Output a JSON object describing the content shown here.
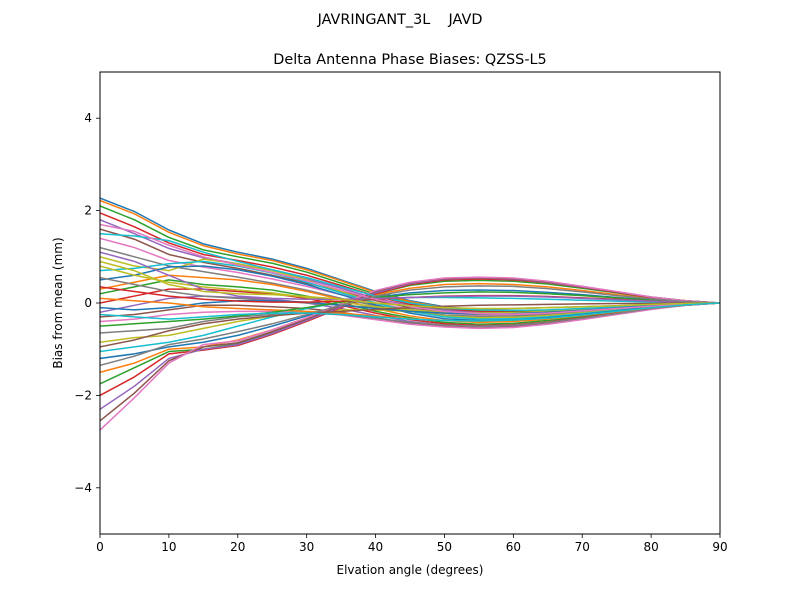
{
  "chart_data": {
    "type": "line",
    "suptitle": "JAVRINGANT_3L    JAVD",
    "title": "Delta Antenna Phase Biases: QZSS-L5",
    "xlabel": "Elvation angle (degrees)",
    "ylabel": "Bias from mean (mm)",
    "xlim": [
      0,
      90
    ],
    "ylim": [
      -5,
      5
    ],
    "x": [
      0,
      5,
      10,
      15,
      20,
      25,
      30,
      35,
      40,
      45,
      50,
      55,
      60,
      65,
      70,
      75,
      80,
      85,
      90
    ],
    "xticks": [
      0,
      10,
      20,
      30,
      40,
      50,
      60,
      70,
      80,
      90
    ],
    "yticks": [
      -4,
      -2,
      0,
      2,
      4
    ],
    "ytick_labels": [
      "−4",
      "−2",
      "0",
      "2",
      "4"
    ],
    "grid": false,
    "legend": "none",
    "palette": [
      "#1f77b4",
      "#ff7f0e",
      "#2ca02c",
      "#d62728",
      "#9467bd",
      "#8c564b",
      "#e377c2",
      "#7f7f7f",
      "#bcbd22",
      "#17becf"
    ],
    "series": [
      {
        "values": [
          2.27,
          1.98,
          1.58,
          1.28,
          1.1,
          0.95,
          0.75,
          0.5,
          0.25,
          0.05,
          -0.08,
          -0.15,
          -0.17,
          -0.16,
          -0.13,
          -0.09,
          -0.05,
          -0.02,
          0.0
        ]
      },
      {
        "values": [
          2.22,
          1.93,
          1.53,
          1.24,
          1.06,
          0.92,
          0.72,
          0.48,
          0.23,
          0.03,
          -0.1,
          -0.16,
          -0.18,
          -0.17,
          -0.14,
          -0.1,
          -0.06,
          -0.02,
          0.0
        ]
      },
      {
        "values": [
          2.1,
          1.8,
          1.42,
          1.15,
          1.0,
          0.86,
          0.67,
          0.43,
          0.19,
          0.0,
          -0.12,
          -0.18,
          -0.19,
          -0.18,
          -0.15,
          -0.1,
          -0.06,
          -0.02,
          0.0
        ]
      },
      {
        "values": [
          1.95,
          1.65,
          1.3,
          1.05,
          0.92,
          0.78,
          0.6,
          0.38,
          0.15,
          -0.03,
          -0.14,
          -0.19,
          -0.2,
          -0.19,
          -0.15,
          -0.11,
          -0.06,
          -0.02,
          0.0
        ]
      },
      {
        "values": [
          1.8,
          1.5,
          1.18,
          0.98,
          0.85,
          0.7,
          0.52,
          0.32,
          0.1,
          -0.06,
          -0.16,
          -0.21,
          -0.22,
          -0.2,
          -0.16,
          -0.11,
          -0.06,
          -0.02,
          0.0
        ]
      },
      {
        "values": [
          1.6,
          1.38,
          1.05,
          0.88,
          0.75,
          0.6,
          0.43,
          0.25,
          0.05,
          -0.1,
          -0.2,
          -0.24,
          -0.24,
          -0.22,
          -0.17,
          -0.12,
          -0.07,
          -0.03,
          0.0
        ]
      },
      {
        "values": [
          1.4,
          1.2,
          0.92,
          0.78,
          0.66,
          0.52,
          0.36,
          0.18,
          0.0,
          -0.14,
          -0.22,
          -0.26,
          -0.26,
          -0.23,
          -0.18,
          -0.13,
          -0.07,
          -0.03,
          0.0
        ]
      },
      {
        "values": [
          1.2,
          1.0,
          0.8,
          0.68,
          0.56,
          0.43,
          0.28,
          0.1,
          -0.06,
          -0.18,
          -0.26,
          -0.29,
          -0.28,
          -0.25,
          -0.2,
          -0.14,
          -0.08,
          -0.03,
          0.0
        ]
      },
      {
        "values": [
          1.0,
          0.8,
          0.7,
          0.95,
          0.85,
          0.7,
          0.5,
          0.25,
          0.0,
          -0.18,
          -0.28,
          -0.32,
          -0.31,
          -0.27,
          -0.21,
          -0.15,
          -0.08,
          -0.03,
          0.0
        ]
      },
      {
        "values": [
          0.7,
          0.75,
          0.85,
          0.9,
          0.8,
          0.65,
          0.45,
          0.22,
          0.0,
          -0.18,
          -0.3,
          -0.35,
          -0.34,
          -0.3,
          -0.23,
          -0.16,
          -0.09,
          -0.03,
          0.0
        ]
      },
      {
        "values": [
          0.5,
          0.6,
          0.78,
          0.8,
          0.72,
          0.58,
          0.4,
          0.18,
          -0.04,
          -0.22,
          -0.34,
          -0.38,
          -0.37,
          -0.32,
          -0.25,
          -0.17,
          -0.09,
          -0.04,
          0.0
        ]
      },
      {
        "values": [
          0.3,
          0.45,
          0.6,
          0.55,
          0.5,
          0.4,
          0.25,
          0.08,
          -0.12,
          -0.28,
          -0.38,
          -0.42,
          -0.4,
          -0.35,
          -0.27,
          -0.19,
          -0.1,
          -0.04,
          0.0
        ]
      },
      {
        "values": [
          0.2,
          0.35,
          0.5,
          0.4,
          0.35,
          0.28,
          0.15,
          0.0,
          -0.18,
          -0.32,
          -0.42,
          -0.46,
          -0.44,
          -0.38,
          -0.3,
          -0.2,
          -0.11,
          -0.04,
          0.0
        ]
      },
      {
        "values": [
          0.0,
          0.15,
          0.3,
          0.3,
          0.25,
          0.2,
          0.1,
          -0.05,
          -0.22,
          -0.36,
          -0.45,
          -0.49,
          -0.47,
          -0.41,
          -0.32,
          -0.22,
          -0.12,
          -0.05,
          0.0
        ]
      },
      {
        "values": [
          -0.2,
          -0.05,
          0.1,
          0.15,
          0.12,
          0.08,
          0.0,
          -0.12,
          -0.27,
          -0.4,
          -0.48,
          -0.51,
          -0.49,
          -0.43,
          -0.33,
          -0.23,
          -0.13,
          -0.05,
          0.0
        ]
      },
      {
        "values": [
          -0.3,
          -0.25,
          -0.15,
          -0.05,
          -0.05,
          -0.08,
          -0.12,
          -0.2,
          -0.32,
          -0.44,
          -0.51,
          -0.54,
          -0.52,
          -0.45,
          -0.35,
          -0.24,
          -0.13,
          -0.05,
          0.0
        ]
      },
      {
        "values": [
          -0.4,
          -0.35,
          -0.25,
          -0.2,
          -0.18,
          -0.18,
          -0.2,
          -0.26,
          -0.36,
          -0.46,
          -0.52,
          -0.55,
          -0.53,
          -0.46,
          -0.36,
          -0.25,
          -0.14,
          -0.05,
          0.0
        ]
      },
      {
        "values": [
          -0.65,
          -0.6,
          -0.55,
          -0.4,
          -0.3,
          -0.25,
          -0.22,
          -0.25,
          -0.33,
          -0.42,
          -0.48,
          -0.5,
          -0.48,
          -0.42,
          -0.33,
          -0.23,
          -0.12,
          -0.05,
          0.0
        ]
      },
      {
        "values": [
          -0.85,
          -0.75,
          -0.7,
          -0.55,
          -0.4,
          -0.28,
          -0.2,
          -0.15,
          -0.15,
          -0.18,
          -0.22,
          -0.24,
          -0.23,
          -0.2,
          -0.16,
          -0.11,
          -0.06,
          -0.02,
          0.0
        ]
      },
      {
        "values": [
          -1.05,
          -0.95,
          -0.85,
          -0.7,
          -0.5,
          -0.3,
          -0.12,
          0.02,
          0.1,
          0.12,
          0.12,
          0.11,
          0.1,
          0.08,
          0.06,
          0.04,
          0.02,
          0.01,
          0.0
        ]
      },
      {
        "values": [
          -1.2,
          -1.1,
          -0.95,
          -0.85,
          -0.7,
          -0.5,
          -0.28,
          -0.05,
          0.12,
          0.22,
          0.27,
          0.28,
          0.27,
          0.23,
          0.18,
          0.12,
          0.07,
          0.03,
          0.0
        ]
      },
      {
        "values": [
          -1.5,
          -1.3,
          -1.0,
          -0.95,
          -0.8,
          -0.58,
          -0.32,
          -0.05,
          0.18,
          0.32,
          0.4,
          0.42,
          0.4,
          0.35,
          0.27,
          0.18,
          0.1,
          0.04,
          0.0
        ]
      },
      {
        "values": [
          -1.75,
          -1.4,
          -1.05,
          -1.0,
          -0.88,
          -0.65,
          -0.38,
          -0.08,
          0.2,
          0.38,
          0.47,
          0.49,
          0.47,
          0.41,
          0.32,
          0.22,
          0.12,
          0.05,
          0.0
        ]
      },
      {
        "values": [
          -2.0,
          -1.6,
          -1.1,
          -1.02,
          -0.92,
          -0.68,
          -0.4,
          -0.1,
          0.2,
          0.4,
          0.5,
          0.52,
          0.5,
          0.44,
          0.34,
          0.23,
          0.12,
          0.05,
          0.0
        ]
      },
      {
        "values": [
          -2.3,
          -1.8,
          -1.2,
          -1.0,
          -0.9,
          -0.66,
          -0.38,
          -0.08,
          0.22,
          0.42,
          0.52,
          0.54,
          0.52,
          0.45,
          0.35,
          0.24,
          0.13,
          0.05,
          0.0
        ]
      },
      {
        "values": [
          -2.55,
          -1.95,
          -1.25,
          -0.95,
          -0.86,
          -0.62,
          -0.35,
          -0.05,
          0.25,
          0.44,
          0.53,
          0.55,
          0.53,
          0.46,
          0.36,
          0.24,
          0.13,
          0.05,
          0.0
        ]
      },
      {
        "values": [
          -2.75,
          -2.05,
          -1.3,
          -0.9,
          -0.82,
          -0.58,
          -0.32,
          -0.02,
          0.27,
          0.45,
          0.54,
          0.56,
          0.54,
          0.47,
          0.36,
          0.25,
          0.13,
          0.05,
          0.0
        ]
      },
      {
        "values": [
          0.55,
          0.4,
          0.25,
          0.15,
          0.1,
          0.05,
          0.0,
          -0.05,
          -0.1,
          -0.12,
          -0.13,
          -0.13,
          -0.12,
          -0.1,
          -0.08,
          -0.06,
          -0.03,
          -0.01,
          0.0
        ]
      },
      {
        "values": [
          0.8,
          0.6,
          0.45,
          0.35,
          0.28,
          0.22,
          0.12,
          0.02,
          -0.08,
          -0.15,
          -0.2,
          -0.22,
          -0.21,
          -0.18,
          -0.14,
          -0.1,
          -0.05,
          -0.02,
          0.0
        ]
      },
      {
        "values": [
          1.5,
          1.45,
          1.35,
          1.1,
          0.9,
          0.72,
          0.55,
          0.35,
          0.15,
          0.0,
          -0.1,
          -0.15,
          -0.16,
          -0.15,
          -0.12,
          -0.09,
          -0.05,
          -0.02,
          0.0
        ]
      },
      {
        "values": [
          -0.1,
          -0.15,
          -0.1,
          0.0,
          0.05,
          0.05,
          0.02,
          -0.05,
          -0.12,
          -0.18,
          -0.22,
          -0.24,
          -0.23,
          -0.2,
          -0.16,
          -0.11,
          -0.06,
          -0.02,
          0.0
        ]
      },
      {
        "values": [
          0.1,
          0.05,
          0.0,
          -0.08,
          -0.12,
          -0.15,
          -0.18,
          -0.22,
          -0.28,
          -0.34,
          -0.38,
          -0.4,
          -0.38,
          -0.34,
          -0.27,
          -0.19,
          -0.1,
          -0.04,
          0.0
        ]
      },
      {
        "values": [
          -0.5,
          -0.45,
          -0.4,
          -0.35,
          -0.28,
          -0.2,
          -0.1,
          0.02,
          0.12,
          0.18,
          0.22,
          0.24,
          0.23,
          0.2,
          0.16,
          0.11,
          0.06,
          0.02,
          0.0
        ]
      },
      {
        "values": [
          0.35,
          0.25,
          0.15,
          0.08,
          0.04,
          0.02,
          0.02,
          0.04,
          0.08,
          0.12,
          0.15,
          0.16,
          0.16,
          0.14,
          0.11,
          0.08,
          0.04,
          0.02,
          0.0
        ]
      },
      {
        "values": [
          1.1,
          0.9,
          0.6,
          0.3,
          0.15,
          0.1,
          0.08,
          0.08,
          0.1,
          0.12,
          0.14,
          0.15,
          0.15,
          0.13,
          0.1,
          0.07,
          0.04,
          0.01,
          0.0
        ]
      },
      {
        "values": [
          -0.95,
          -0.8,
          -0.6,
          -0.45,
          -0.35,
          -0.28,
          -0.22,
          -0.18,
          -0.14,
          -0.1,
          -0.07,
          -0.05,
          -0.04,
          -0.03,
          -0.02,
          -0.01,
          -0.01,
          0.0,
          0.0
        ]
      },
      {
        "values": [
          1.7,
          1.55,
          1.25,
          1.0,
          0.82,
          0.66,
          0.48,
          0.28,
          0.08,
          -0.08,
          -0.18,
          -0.23,
          -0.24,
          -0.22,
          -0.17,
          -0.12,
          -0.07,
          -0.03,
          0.0
        ]
      },
      {
        "values": [
          -1.35,
          -1.15,
          -0.9,
          -0.78,
          -0.62,
          -0.45,
          -0.25,
          -0.05,
          0.15,
          0.28,
          0.35,
          0.37,
          0.36,
          0.31,
          0.24,
          0.16,
          0.09,
          0.03,
          0.0
        ]
      },
      {
        "values": [
          0.9,
          0.7,
          0.4,
          0.25,
          0.2,
          0.18,
          0.14,
          0.08,
          0.0,
          -0.06,
          -0.1,
          -0.12,
          -0.12,
          -0.1,
          -0.08,
          -0.06,
          -0.03,
          -0.01,
          0.0
        ]
      },
      {
        "values": [
          -0.25,
          -0.3,
          -0.35,
          -0.3,
          -0.25,
          -0.22,
          -0.22,
          -0.25,
          -0.3,
          -0.35,
          -0.38,
          -0.39,
          -0.37,
          -0.33,
          -0.26,
          -0.18,
          -0.1,
          -0.04,
          0.0
        ]
      }
    ]
  }
}
